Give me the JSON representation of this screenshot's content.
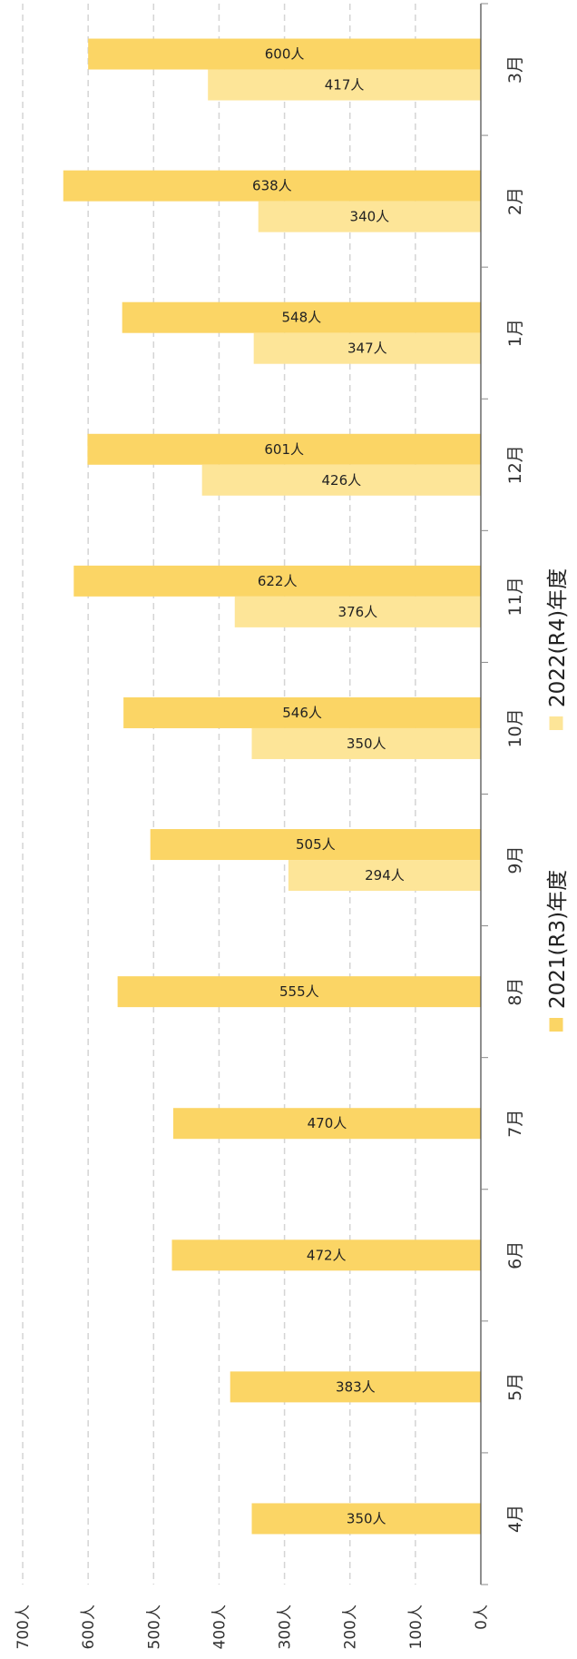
{
  "chart_data": {
    "type": "bar",
    "orientation": "horizontal (rotated)",
    "categories": [
      "4月",
      "5月",
      "6月",
      "7月",
      "8月",
      "9月",
      "10月",
      "11月",
      "12月",
      "1月",
      "2月",
      "3月"
    ],
    "series": [
      {
        "name": "2021(R3)年度",
        "values": [
          350,
          383,
          472,
          470,
          555,
          505,
          546,
          622,
          601,
          548,
          638,
          600
        ],
        "labels": [
          "350人",
          "383人",
          "472人",
          "470人",
          "555人",
          "505人",
          "546人",
          "622人",
          "601人",
          "548人",
          "638人",
          "600人"
        ],
        "color": "#FBD565"
      },
      {
        "name": "2022(R4)年度",
        "values": [
          null,
          null,
          null,
          null,
          null,
          294,
          350,
          376,
          426,
          347,
          340,
          417
        ],
        "labels": [
          "",
          "",
          "",
          "",
          "",
          "294人",
          "350人",
          "376人",
          "426人",
          "347人",
          "340人",
          "417人"
        ],
        "color": "#FDE598"
      }
    ],
    "value_axis": {
      "ticks": [
        0,
        100,
        200,
        300,
        400,
        500,
        600,
        700
      ],
      "tick_labels": [
        "0人",
        "100人",
        "200人",
        "300人",
        "400人",
        "500人",
        "600人",
        "700人"
      ],
      "range": [
        0,
        700
      ]
    },
    "grid": true,
    "legend_position": "right"
  }
}
